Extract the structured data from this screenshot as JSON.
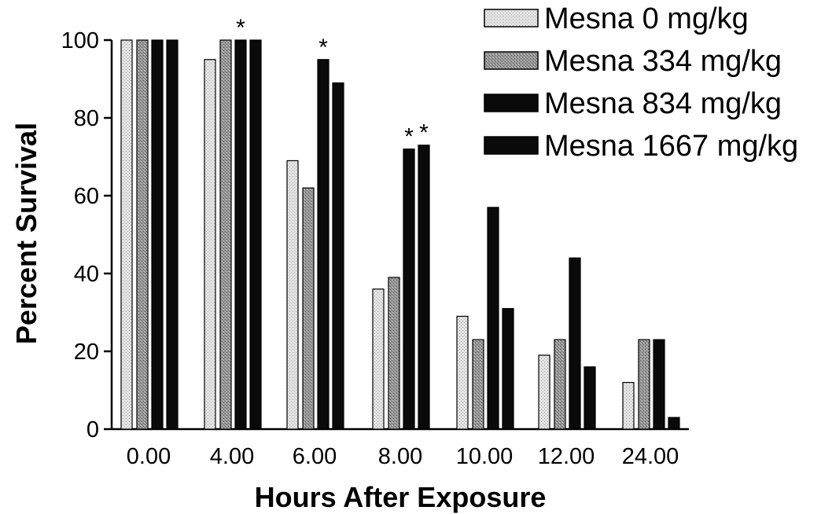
{
  "chart_data": {
    "type": "bar",
    "title": "",
    "xlabel": "Hours After Exposure",
    "ylabel": "Percent Survival",
    "ylim": [
      0,
      100
    ],
    "yticks": [
      0,
      20,
      40,
      60,
      80,
      100
    ],
    "categories": [
      "0.00",
      "4.00",
      "6.00",
      "8.00",
      "10.00",
      "12.00",
      "24.00"
    ],
    "series": [
      {
        "name": "Mesna 0 mg/kg",
        "color": "#e6e6e6",
        "values": [
          100,
          95,
          69,
          36,
          29,
          19,
          12
        ]
      },
      {
        "name": "Mesna 334 mg/kg",
        "color": "#8c8c8c",
        "values": [
          100,
          100,
          62,
          39,
          23,
          23,
          23
        ]
      },
      {
        "name": "Mesna 834 mg/kg",
        "color": "#0a0a0a",
        "values": [
          100,
          100,
          95,
          72,
          57,
          44,
          23
        ]
      },
      {
        "name": "Mesna 1667 mg/kg",
        "color": "#0a0a0a",
        "values": [
          100,
          100,
          89,
          73,
          31,
          16,
          3
        ]
      }
    ],
    "significance": [
      {
        "category_index": 1,
        "series_index": 2,
        "label": "*"
      },
      {
        "category_index": 2,
        "series_index": 2,
        "label": "*"
      },
      {
        "category_index": 3,
        "series_index": 2,
        "label": "*"
      },
      {
        "category_index": 3,
        "series_index": 3,
        "label": "*"
      }
    ],
    "legend_position": "top-right",
    "grid": false
  }
}
